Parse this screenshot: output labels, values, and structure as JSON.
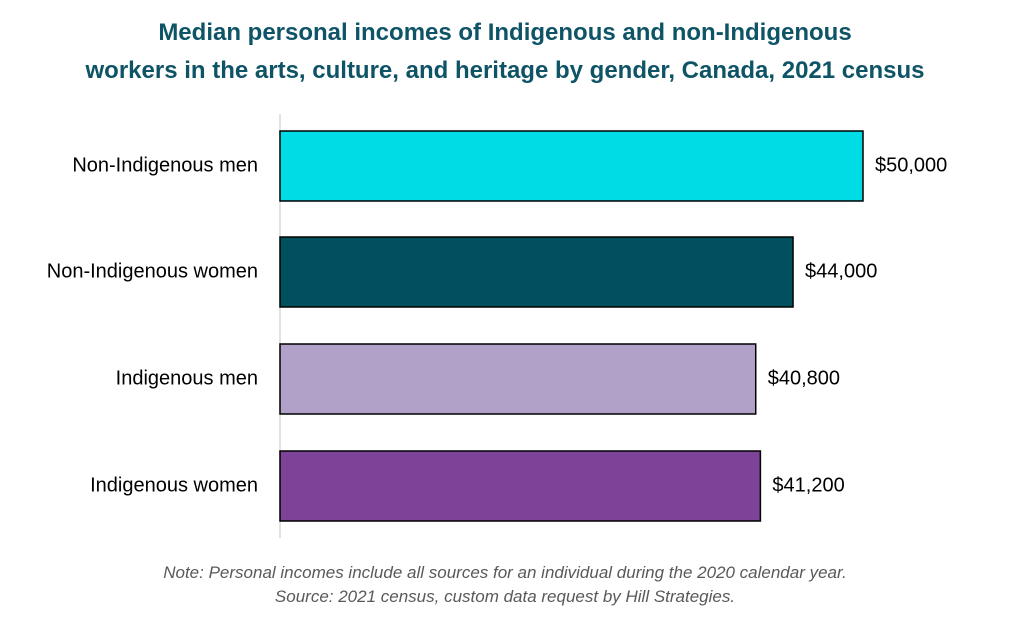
{
  "chart_data": {
    "type": "bar",
    "orientation": "horizontal",
    "title_lines": [
      "Median personal incomes of Indigenous and non-Indigenous",
      "workers in the arts, culture, and heritage by gender, Canada,  2021 census"
    ],
    "categories": [
      "Non-Indigenous men",
      "Non-Indigenous women",
      "Indigenous men",
      "Indigenous women"
    ],
    "values": [
      50000,
      44000,
      40800,
      41200
    ],
    "value_labels": [
      "$50,000",
      "$44,000",
      "$40,800",
      "$41,200"
    ],
    "bar_colors": [
      "#00dce5",
      "#00505f",
      "#b1a1c8",
      "#7d4398"
    ],
    "xlim": [
      0,
      50000
    ],
    "grid": false,
    "legend": "none",
    "notes": [
      "Note: Personal incomes include all sources for an individual during the 2020 calendar year.",
      "Source: 2021 census, custom data request by Hill Strategies."
    ]
  },
  "colors": {
    "title": "#0e5466",
    "note": "#595959",
    "axis": "#d9d9d9",
    "bar_outline": "#000000"
  }
}
